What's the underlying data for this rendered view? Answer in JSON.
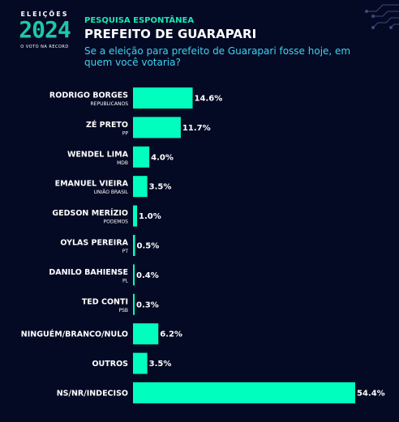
{
  "logo": {
    "eleicoes": "ELEIÇÕES",
    "year": "2024",
    "tagline": "O VOTO NA RECORD"
  },
  "header": {
    "subtitle": "PESQUISA ESPONTÂNEA",
    "title": "PREFEITO DE GUARAPARI",
    "question": "Se a eleição para prefeito de Guarapari fosse hoje, em quem você votaria?"
  },
  "colors": {
    "bar": "#00ffbf",
    "background": "#050a24",
    "accent": "#19e8b4",
    "question": "#3dd2f0"
  },
  "chart_data": {
    "type": "bar",
    "orientation": "horizontal",
    "title": "PREFEITO DE GUARAPARI",
    "categories": [
      "RODRIGO BORGES",
      "ZÉ PRETO",
      "WENDEL LIMA",
      "EMANUEL VIEIRA",
      "GEDSON MERÍZIO",
      "OYLAS PEREIRA",
      "DANILO BAHIENSE",
      "TED CONTI",
      "NINGUÉM/BRANCO/NULO",
      "OUTROS",
      "NS/NR/INDECISO"
    ],
    "parties": [
      "REPUBLICANOS",
      "PP",
      "MDB",
      "UNIÃO BRASIL",
      "PODEMOS",
      "PT",
      "PL",
      "PSB",
      "",
      "",
      ""
    ],
    "values": [
      14.6,
      11.7,
      4.0,
      3.5,
      1.0,
      0.5,
      0.4,
      0.3,
      6.2,
      3.5,
      54.4
    ],
    "value_labels": [
      "14.6%",
      "11.7%",
      "4.0%",
      "3.5%",
      "1.0%",
      "0.5%",
      "0.4%",
      "0.3%",
      "6.2%",
      "3.5%",
      "54.4%"
    ],
    "xlim": [
      0,
      54.4
    ],
    "grid": false,
    "legend": "none"
  }
}
